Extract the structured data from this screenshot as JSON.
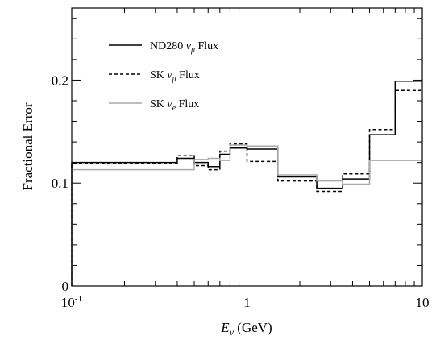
{
  "chart_data": {
    "type": "line",
    "step": true,
    "title": "",
    "xlabel": {
      "base": "E",
      "sub": "ν",
      "suffix": " (GeV)"
    },
    "ylabel": "Fractional Error",
    "xscale": "log",
    "xlim": [
      0.1,
      10
    ],
    "ylim": [
      0,
      0.27
    ],
    "grid": false,
    "legend": "top-left",
    "x_ticks": [
      {
        "value": 0.1,
        "base": "10",
        "sup": "-1"
      },
      {
        "value": 1,
        "base": "1",
        "sup": ""
      },
      {
        "value": 10,
        "base": "10",
        "sup": ""
      }
    ],
    "y_ticks": [
      {
        "value": 0,
        "label": "0"
      },
      {
        "value": 0.1,
        "label": "0.1"
      },
      {
        "value": 0.2,
        "label": "0.2"
      }
    ],
    "bin_edges": [
      0.1,
      0.4,
      0.5,
      0.6,
      0.7,
      0.8,
      1.0,
      1.5,
      2.5,
      3.5,
      5.0,
      7.0,
      10.0
    ],
    "series": [
      {
        "name": "ND280",
        "flavor": "μ",
        "suffix": " Flux",
        "style": "solid",
        "color": "#000000",
        "values": [
          0.12,
          0.124,
          0.12,
          0.116,
          0.128,
          0.134,
          0.133,
          0.106,
          0.095,
          0.104,
          0.147,
          0.199
        ]
      },
      {
        "name": "SK",
        "flavor": "μ",
        "suffix": " Flux",
        "style": "dashed",
        "color": "#000000",
        "values": [
          0.119,
          0.127,
          0.117,
          0.113,
          0.131,
          0.138,
          0.121,
          0.102,
          0.092,
          0.109,
          0.152,
          0.19
        ]
      },
      {
        "name": "SK",
        "flavor": "e",
        "suffix": " Flux",
        "style": "solid",
        "color": "#aaaaaa",
        "values": [
          0.113,
          0.113,
          0.123,
          0.124,
          0.122,
          0.137,
          0.136,
          0.108,
          0.102,
          0.099,
          0.122,
          0.122
        ]
      }
    ]
  }
}
